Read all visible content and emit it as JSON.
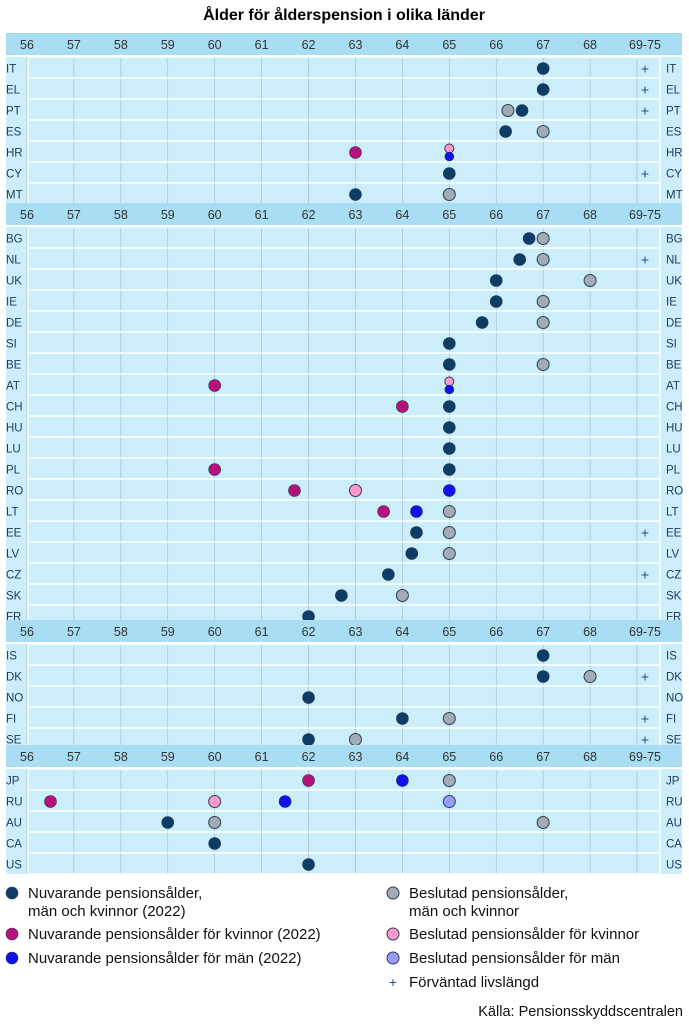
{
  "chart_data": {
    "type": "scatter",
    "title": "Ålder för ålderspension i olika länder",
    "x_ticks": [
      "56",
      "57",
      "58",
      "59",
      "60",
      "61",
      "62",
      "63",
      "64",
      "65",
      "66",
      "67",
      "68",
      "69-75"
    ],
    "xlim": [
      56,
      69
    ],
    "source": "Källa: Pensionsskyddscentralen",
    "legend": [
      {
        "key": "cur_both",
        "label": "Nuvarande pensionsålder,",
        "label2": "män och kvinnor (2022)",
        "color": "#0d3d66",
        "marker": "dot"
      },
      {
        "key": "cur_women",
        "label": "Nuvarande pensionsålder för kvinnor (2022)",
        "label2": "",
        "color": "#b5117a",
        "marker": "dot"
      },
      {
        "key": "cur_men",
        "label": "Nuvarande pensionsålder för män (2022)",
        "label2": "",
        "color": "#1111ee",
        "marker": "dot"
      },
      {
        "key": "dec_both",
        "label": "Beslutad pensionsålder,",
        "label2": "män och kvinnor",
        "color": "#a3acb5",
        "marker": "dot"
      },
      {
        "key": "dec_women",
        "label": "Beslutad pensionsålder för kvinnor",
        "label2": "",
        "color": "#ff99cc",
        "marker": "dot"
      },
      {
        "key": "dec_men",
        "label": "Beslutad pensionsålder för män",
        "label2": "",
        "color": "#9b9bff",
        "marker": "dot"
      },
      {
        "key": "life",
        "label": "Förväntad livslängd",
        "label2": "",
        "color": "#1b4f8a",
        "marker": "plus"
      }
    ],
    "groups": [
      {
        "countries": [
          {
            "code": "IT",
            "points": [
              {
                "x": 67,
                "s": "cur_both"
              }
            ],
            "life": true
          },
          {
            "code": "EL",
            "points": [
              {
                "x": 67,
                "s": "cur_both"
              }
            ],
            "life": true
          },
          {
            "code": "PT",
            "points": [
              {
                "x": 66.25,
                "s": "dec_both"
              },
              {
                "x": 66.55,
                "s": "cur_both"
              }
            ],
            "life": true
          },
          {
            "code": "ES",
            "points": [
              {
                "x": 66.2,
                "s": "cur_both"
              },
              {
                "x": 67,
                "s": "dec_both"
              }
            ],
            "life": false
          },
          {
            "code": "HR",
            "points": [
              {
                "x": 63,
                "s": "cur_women"
              },
              {
                "x": 65,
                "s": "dec_women",
                "half": "top"
              },
              {
                "x": 65,
                "s": "cur_men",
                "half": "bottom"
              }
            ],
            "life": false
          },
          {
            "code": "CY",
            "points": [
              {
                "x": 65,
                "s": "cur_both"
              }
            ],
            "life": true
          },
          {
            "code": "MT",
            "points": [
              {
                "x": 63,
                "s": "cur_both"
              },
              {
                "x": 65,
                "s": "dec_both"
              }
            ],
            "life": false
          }
        ]
      },
      {
        "countries": [
          {
            "code": "BG",
            "points": [
              {
                "x": 66.7,
                "s": "cur_both"
              },
              {
                "x": 67,
                "s": "dec_both"
              }
            ],
            "life": false
          },
          {
            "code": "NL",
            "points": [
              {
                "x": 66.5,
                "s": "cur_both"
              },
              {
                "x": 67,
                "s": "dec_both"
              }
            ],
            "life": true
          },
          {
            "code": "UK",
            "points": [
              {
                "x": 66,
                "s": "cur_both"
              },
              {
                "x": 68,
                "s": "dec_both"
              }
            ],
            "life": false
          },
          {
            "code": "IE",
            "points": [
              {
                "x": 66,
                "s": "cur_both"
              },
              {
                "x": 67,
                "s": "dec_both"
              }
            ],
            "life": false
          },
          {
            "code": "DE",
            "points": [
              {
                "x": 65.7,
                "s": "cur_both"
              },
              {
                "x": 67,
                "s": "dec_both"
              }
            ],
            "life": false
          },
          {
            "code": "SI",
            "points": [
              {
                "x": 65,
                "s": "cur_both"
              }
            ],
            "life": false
          },
          {
            "code": "BE",
            "points": [
              {
                "x": 65,
                "s": "cur_both"
              },
              {
                "x": 67,
                "s": "dec_both"
              }
            ],
            "life": false
          },
          {
            "code": "AT",
            "points": [
              {
                "x": 60,
                "s": "cur_women"
              },
              {
                "x": 65,
                "s": "dec_women",
                "half": "top"
              },
              {
                "x": 65,
                "s": "cur_men",
                "half": "bottom"
              }
            ],
            "life": false
          },
          {
            "code": "CH",
            "points": [
              {
                "x": 64,
                "s": "cur_women"
              },
              {
                "x": 65,
                "s": "cur_both"
              }
            ],
            "life": false
          },
          {
            "code": "HU",
            "points": [
              {
                "x": 65,
                "s": "cur_both"
              }
            ],
            "life": false
          },
          {
            "code": "LU",
            "points": [
              {
                "x": 65,
                "s": "cur_both"
              }
            ],
            "life": false
          },
          {
            "code": "PL",
            "points": [
              {
                "x": 60,
                "s": "cur_women"
              },
              {
                "x": 65,
                "s": "cur_both"
              }
            ],
            "life": false
          },
          {
            "code": "RO",
            "points": [
              {
                "x": 61.7,
                "s": "cur_women"
              },
              {
                "x": 63,
                "s": "dec_women"
              },
              {
                "x": 65,
                "s": "cur_men"
              }
            ],
            "life": false
          },
          {
            "code": "LT",
            "points": [
              {
                "x": 63.6,
                "s": "cur_women"
              },
              {
                "x": 64.3,
                "s": "cur_men"
              },
              {
                "x": 65,
                "s": "dec_both"
              }
            ],
            "life": false
          },
          {
            "code": "EE",
            "points": [
              {
                "x": 64.3,
                "s": "cur_both"
              },
              {
                "x": 65,
                "s": "dec_both"
              }
            ],
            "life": true
          },
          {
            "code": "LV",
            "points": [
              {
                "x": 64.2,
                "s": "cur_both"
              },
              {
                "x": 65,
                "s": "dec_both"
              }
            ],
            "life": false
          },
          {
            "code": "CZ",
            "points": [
              {
                "x": 63.7,
                "s": "cur_both"
              }
            ],
            "life": true
          },
          {
            "code": "SK",
            "points": [
              {
                "x": 62.7,
                "s": "cur_both"
              },
              {
                "x": 64,
                "s": "dec_both"
              }
            ],
            "life": false
          },
          {
            "code": "FR",
            "points": [
              {
                "x": 62,
                "s": "cur_both"
              }
            ],
            "life": false
          }
        ]
      },
      {
        "countries": [
          {
            "code": "IS",
            "points": [
              {
                "x": 67,
                "s": "cur_both"
              }
            ],
            "life": false
          },
          {
            "code": "DK",
            "points": [
              {
                "x": 67,
                "s": "cur_both"
              },
              {
                "x": 68,
                "s": "dec_both"
              }
            ],
            "life": true
          },
          {
            "code": "NO",
            "points": [
              {
                "x": 62,
                "s": "cur_both"
              }
            ],
            "life": false
          },
          {
            "code": "FI",
            "points": [
              {
                "x": 64,
                "s": "cur_both"
              },
              {
                "x": 65,
                "s": "dec_both"
              }
            ],
            "life": true
          },
          {
            "code": "SE",
            "points": [
              {
                "x": 62,
                "s": "cur_both"
              },
              {
                "x": 63,
                "s": "dec_both"
              }
            ],
            "life": true
          }
        ]
      },
      {
        "countries": [
          {
            "code": "JP",
            "points": [
              {
                "x": 62,
                "s": "cur_women"
              },
              {
                "x": 64,
                "s": "cur_men"
              },
              {
                "x": 65,
                "s": "dec_both"
              }
            ],
            "life": false
          },
          {
            "code": "RU",
            "points": [
              {
                "x": 56.5,
                "s": "cur_women"
              },
              {
                "x": 60,
                "s": "dec_women"
              },
              {
                "x": 61.5,
                "s": "cur_men"
              },
              {
                "x": 65,
                "s": "dec_men"
              }
            ],
            "life": false
          },
          {
            "code": "AU",
            "points": [
              {
                "x": 59,
                "s": "cur_both"
              },
              {
                "x": 60,
                "s": "dec_both"
              },
              {
                "x": 67,
                "s": "dec_both"
              }
            ],
            "life": false
          },
          {
            "code": "CA",
            "points": [
              {
                "x": 60,
                "s": "cur_both"
              }
            ],
            "life": false
          },
          {
            "code": "US",
            "points": [
              {
                "x": 62,
                "s": "cur_both"
              }
            ],
            "life": false
          }
        ]
      }
    ]
  }
}
